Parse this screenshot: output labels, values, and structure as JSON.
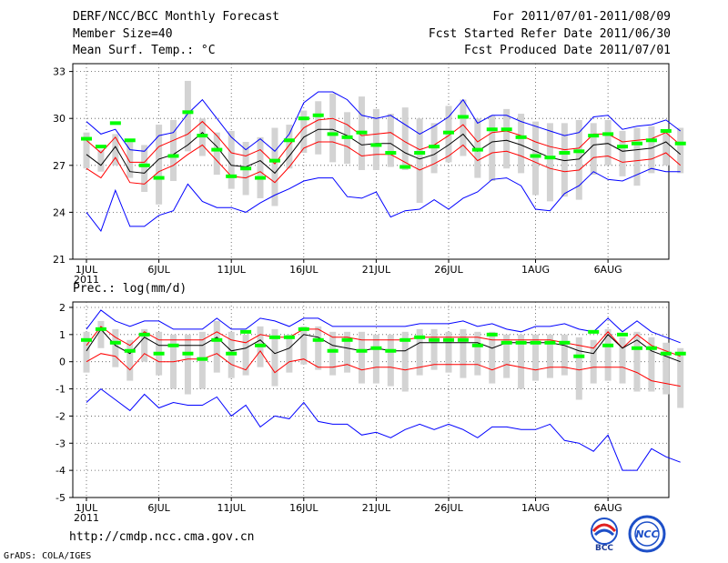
{
  "header": {
    "left": [
      "DERF/NCC/BCC Monthly Forecast",
      "Member Size=40",
      "Mean Surf. Temp.: °C"
    ],
    "right": [
      "For 2011/07/01-2011/08/09",
      "Fcst Started Refer Date 2011/06/30",
      "Fcst Produced Date 2011/07/01"
    ]
  },
  "footer": {
    "url": "http://cmdp.ncc.cma.gov.cn",
    "grads": "GrADS: COLA/IGES",
    "logo1_text": "BCC",
    "logo2_text": "NCC"
  },
  "colors": {
    "max_min": "#0000ff",
    "spread": "#ff0000",
    "mean": "#000000",
    "obs": "#00ff00",
    "box": "#d3d3d3"
  },
  "chart_data": [
    {
      "type": "line",
      "title": "Mean Surf. Temp.: °C",
      "x_tick_labels": [
        "1JUL",
        "6JUL",
        "11JUL",
        "16JUL",
        "21JUL",
        "26JUL",
        "1AUG",
        "6AUG"
      ],
      "x_tick_days": [
        1,
        6,
        11,
        16,
        21,
        26,
        32,
        37
      ],
      "x_sublabel": "2011",
      "ylim": [
        21,
        33.5
      ],
      "yticks": [
        21,
        24,
        27,
        30,
        33
      ],
      "grid": true,
      "series": [
        {
          "name": "max",
          "values": [
            29.8,
            29.0,
            29.3,
            28.0,
            27.9,
            28.9,
            29.1,
            30.3,
            31.2,
            30.0,
            28.8,
            28.0,
            28.7,
            27.9,
            29.0,
            31.0,
            31.7,
            31.7,
            31.2,
            30.2,
            30.0,
            30.2,
            29.6,
            29.0,
            29.5,
            30.1,
            31.2,
            29.7,
            30.2,
            30.2,
            29.8,
            29.5,
            29.2,
            28.9,
            29.1,
            30.1,
            30.2,
            29.3,
            29.5,
            29.6,
            29.9,
            29.2
          ]
        },
        {
          "name": "upper",
          "values": [
            28.6,
            27.8,
            28.8,
            27.2,
            27.2,
            28.2,
            28.6,
            29.0,
            29.8,
            28.9,
            27.8,
            27.6,
            28.0,
            27.1,
            28.3,
            29.4,
            29.9,
            30.0,
            29.6,
            28.9,
            29.0,
            29.1,
            28.5,
            28.0,
            28.3,
            28.9,
            29.6,
            28.5,
            29.1,
            29.2,
            28.9,
            28.5,
            28.2,
            28.0,
            28.1,
            29.0,
            29.0,
            28.5,
            28.6,
            28.7,
            29.1,
            28.3
          ]
        },
        {
          "name": "mean",
          "values": [
            27.7,
            27.0,
            28.2,
            26.6,
            26.5,
            27.4,
            27.7,
            28.3,
            29.1,
            28.2,
            27.0,
            26.9,
            27.3,
            26.5,
            27.6,
            28.8,
            29.3,
            29.3,
            28.9,
            28.3,
            28.4,
            28.4,
            27.8,
            27.4,
            27.7,
            28.3,
            29.0,
            27.9,
            28.5,
            28.6,
            28.3,
            27.9,
            27.5,
            27.3,
            27.4,
            28.3,
            28.4,
            27.9,
            28.0,
            28.1,
            28.5,
            27.7
          ]
        },
        {
          "name": "lower",
          "values": [
            26.8,
            26.2,
            27.5,
            25.9,
            25.8,
            26.6,
            27.0,
            27.7,
            28.3,
            27.3,
            26.3,
            26.2,
            26.6,
            25.9,
            26.9,
            28.1,
            28.5,
            28.5,
            28.2,
            27.6,
            27.7,
            27.7,
            27.2,
            26.7,
            27.1,
            27.6,
            28.3,
            27.3,
            27.8,
            27.9,
            27.6,
            27.2,
            26.8,
            26.6,
            26.7,
            27.5,
            27.6,
            27.2,
            27.3,
            27.4,
            27.8,
            27.0
          ]
        },
        {
          "name": "min",
          "values": [
            24.0,
            22.8,
            25.4,
            23.1,
            23.1,
            23.8,
            24.1,
            25.8,
            24.7,
            24.3,
            24.3,
            24.0,
            24.6,
            25.1,
            25.5,
            26.0,
            26.2,
            26.2,
            25.0,
            24.9,
            25.3,
            23.7,
            24.1,
            24.2,
            24.8,
            24.2,
            24.9,
            25.3,
            26.1,
            26.2,
            25.7,
            24.2,
            24.1,
            25.2,
            25.7,
            26.6,
            26.1,
            26.0,
            26.4,
            26.8,
            26.6,
            26.6
          ]
        },
        {
          "name": "obs",
          "values": [
            28.7,
            28.2,
            29.7,
            28.6,
            27.0,
            26.2,
            27.6,
            30.4,
            28.9,
            28.0,
            26.3,
            26.8,
            26.2,
            27.3,
            28.6,
            30.0,
            30.2,
            29.0,
            28.8,
            29.1,
            28.3,
            27.8,
            26.9,
            27.8,
            28.2,
            29.1,
            30.1,
            28.0,
            29.3,
            29.3,
            28.8,
            27.6,
            27.5,
            27.8,
            27.9,
            28.9,
            29.0,
            28.2,
            28.4,
            28.6,
            29.2,
            28.4
          ]
        },
        {
          "name": "box_top",
          "values": [
            29.1,
            28.0,
            29.0,
            28.7,
            28.3,
            29.6,
            29.9,
            32.4,
            30.0,
            29.1,
            29.2,
            28.5,
            28.8,
            29.4,
            29.6,
            30.5,
            31.1,
            31.6,
            30.4,
            31.4,
            30.6,
            30.3,
            30.7,
            30.0,
            29.7,
            30.8,
            31.2,
            30.0,
            30.2,
            30.6,
            30.3,
            29.8,
            29.7,
            29.7,
            29.9,
            29.7,
            29.9,
            29.2,
            29.4,
            29.5,
            29.3,
            29.4
          ]
        },
        {
          "name": "box_bottom",
          "values": [
            26.8,
            26.6,
            27.0,
            26.2,
            25.3,
            24.5,
            26.0,
            27.9,
            27.6,
            26.4,
            25.5,
            25.1,
            24.9,
            24.4,
            26.8,
            27.8,
            27.7,
            27.2,
            27.1,
            26.7,
            26.7,
            26.9,
            26.7,
            24.6,
            26.5,
            27.2,
            27.6,
            26.2,
            26.0,
            26.8,
            26.5,
            25.1,
            24.7,
            25.0,
            24.8,
            26.4,
            27.0,
            26.3,
            25.7,
            26.5,
            27.0,
            26.5
          ]
        }
      ]
    },
    {
      "type": "line",
      "title": "Prec.: log(mm/d)",
      "x_tick_labels": [
        "1JUL",
        "6JUL",
        "11JUL",
        "16JUL",
        "21JUL",
        "26JUL",
        "1AUG",
        "6AUG"
      ],
      "x_tick_days": [
        1,
        6,
        11,
        16,
        21,
        26,
        32,
        37
      ],
      "x_sublabel": "2011",
      "ylim": [
        -5,
        2.2
      ],
      "yticks": [
        -5,
        -4,
        -3,
        -2,
        -1,
        0,
        1,
        2
      ],
      "grid": true,
      "series": [
        {
          "name": "max",
          "values": [
            1.2,
            1.9,
            1.5,
            1.3,
            1.5,
            1.5,
            1.2,
            1.2,
            1.2,
            1.6,
            1.2,
            1.2,
            1.6,
            1.5,
            1.3,
            1.6,
            1.6,
            1.3,
            1.3,
            1.3,
            1.3,
            1.3,
            1.3,
            1.4,
            1.4,
            1.4,
            1.5,
            1.3,
            1.4,
            1.2,
            1.1,
            1.3,
            1.3,
            1.4,
            1.2,
            1.1,
            1.6,
            1.1,
            1.5,
            1.1,
            0.9,
            0.7
          ]
        },
        {
          "name": "upper",
          "values": [
            0.6,
            1.3,
            0.9,
            0.6,
            1.1,
            0.8,
            0.8,
            0.8,
            0.8,
            1.1,
            0.8,
            0.7,
            1.0,
            0.9,
            0.9,
            1.2,
            1.2,
            0.9,
            0.9,
            0.8,
            0.8,
            0.8,
            0.8,
            0.9,
            0.9,
            0.9,
            0.9,
            0.9,
            0.8,
            0.8,
            0.8,
            0.8,
            0.8,
            0.7,
            0.6,
            0.5,
            1.1,
            0.5,
            1.0,
            0.6,
            0.4,
            0.2
          ]
        },
        {
          "name": "mean",
          "values": [
            0.4,
            1.2,
            0.6,
            0.3,
            0.9,
            0.6,
            0.6,
            0.6,
            0.6,
            0.9,
            0.4,
            0.5,
            0.8,
            0.3,
            0.5,
            1.0,
            0.9,
            0.6,
            0.5,
            0.4,
            0.5,
            0.4,
            0.4,
            0.7,
            0.7,
            0.7,
            0.7,
            0.7,
            0.5,
            0.7,
            0.7,
            0.7,
            0.7,
            0.6,
            0.4,
            0.3,
            1.0,
            0.5,
            0.8,
            0.4,
            0.2,
            0.0
          ]
        },
        {
          "name": "lower",
          "values": [
            0.0,
            0.3,
            0.2,
            -0.3,
            0.3,
            0.0,
            0.0,
            0.1,
            0.1,
            0.3,
            -0.1,
            -0.3,
            0.4,
            -0.4,
            0.0,
            0.1,
            -0.2,
            -0.2,
            -0.1,
            -0.3,
            -0.2,
            -0.2,
            -0.3,
            -0.2,
            -0.1,
            -0.1,
            -0.1,
            -0.1,
            -0.3,
            -0.1,
            -0.2,
            -0.3,
            -0.2,
            -0.2,
            -0.3,
            -0.2,
            -0.2,
            -0.2,
            -0.4,
            -0.7,
            -0.8,
            -0.9
          ]
        },
        {
          "name": "min",
          "values": [
            -1.5,
            -1.0,
            -1.4,
            -1.8,
            -1.2,
            -1.7,
            -1.5,
            -1.6,
            -1.6,
            -1.3,
            -2.0,
            -1.6,
            -2.4,
            -2.0,
            -2.1,
            -1.5,
            -2.2,
            -2.3,
            -2.3,
            -2.7,
            -2.6,
            -2.8,
            -2.5,
            -2.3,
            -2.5,
            -2.3,
            -2.5,
            -2.8,
            -2.4,
            -2.4,
            -2.5,
            -2.5,
            -2.3,
            -2.9,
            -3.0,
            -3.3,
            -2.7,
            -4.0,
            -4.0,
            -3.2,
            -3.5,
            -3.7
          ]
        },
        {
          "name": "obs",
          "values": [
            0.8,
            1.2,
            0.7,
            0.4,
            1.0,
            0.3,
            0.6,
            0.3,
            0.1,
            0.8,
            0.3,
            1.1,
            0.6,
            0.9,
            0.9,
            1.2,
            0.8,
            0.4,
            0.8,
            0.4,
            0.5,
            0.4,
            0.8,
            0.9,
            0.8,
            0.8,
            0.8,
            0.6,
            1.0,
            0.7,
            0.7,
            0.7,
            0.7,
            0.7,
            0.2,
            1.1,
            0.6,
            1.0,
            0.5,
            0.5,
            0.3,
            0.3
          ]
        },
        {
          "name": "box_top",
          "values": [
            1.1,
            1.5,
            1.2,
            0.8,
            1.2,
            1.1,
            1.0,
            1.0,
            1.1,
            1.5,
            1.1,
            1.0,
            1.3,
            1.2,
            1.0,
            1.3,
            1.3,
            1.1,
            1.1,
            1.1,
            1.0,
            1.0,
            1.1,
            1.2,
            1.2,
            1.1,
            1.2,
            1.1,
            1.1,
            1.0,
            1.0,
            1.0,
            1.0,
            1.0,
            0.9,
            0.8,
            1.2,
            0.9,
            1.1,
            0.9,
            0.7,
            0.5
          ]
        },
        {
          "name": "box_bottom",
          "values": [
            -0.4,
            0.5,
            -0.2,
            -0.7,
            0.0,
            -0.5,
            -1.0,
            -1.2,
            -1.0,
            -0.4,
            -0.6,
            -0.5,
            -0.2,
            -0.9,
            -0.4,
            -0.1,
            -0.3,
            -0.5,
            -0.4,
            -0.8,
            -0.8,
            -0.9,
            -1.1,
            -0.5,
            -0.3,
            -0.4,
            -0.6,
            -0.5,
            -0.8,
            -0.6,
            -1.0,
            -0.7,
            -0.6,
            -0.5,
            -1.4,
            -0.8,
            -0.7,
            -0.8,
            -1.1,
            -1.1,
            -1.2,
            -1.7
          ]
        }
      ]
    }
  ]
}
